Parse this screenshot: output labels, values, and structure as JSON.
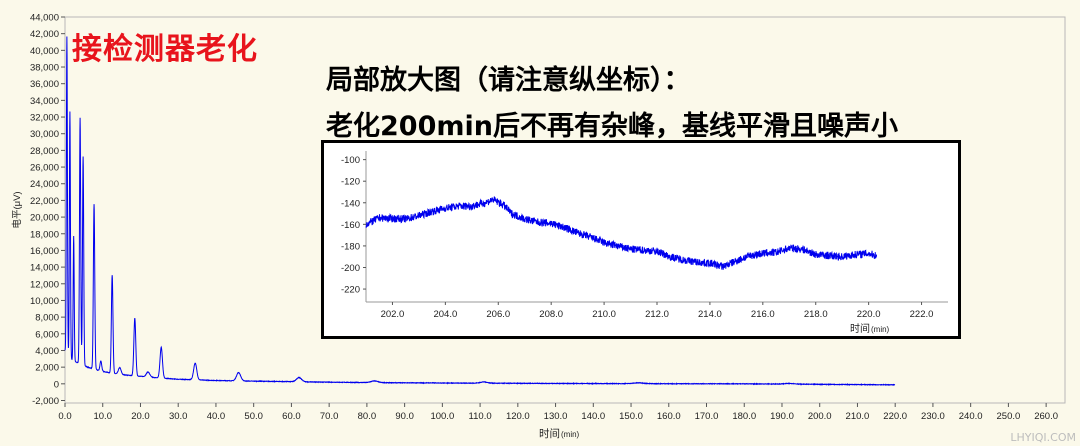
{
  "annotations": {
    "title_red": "接检测器老化",
    "note_line1": "局部放大图（请注意纵坐标）：",
    "note_line2": "老化200min后不再有杂峰，基线平滑且噪声小"
  },
  "watermark": "LHYIQI.COM",
  "colors": {
    "trace": "#0000ee",
    "title_red": "#e8141c",
    "axis": "#606060"
  },
  "chart_data": [
    {
      "type": "line",
      "name": "main-chromatogram",
      "xlabel": "时间",
      "xlabel_unit": "(min)",
      "ylabel": "电平(μV)",
      "xlim": [
        0,
        265
      ],
      "ylim": [
        -2300,
        44000
      ],
      "x_ticks": [
        0.0,
        10.0,
        20.0,
        30.0,
        40.0,
        50.0,
        60.0,
        70.0,
        80.0,
        90.0,
        100.0,
        110.0,
        120.0,
        130.0,
        140.0,
        150.0,
        160.0,
        170.0,
        180.0,
        190.0,
        200.0,
        210.0,
        220.0,
        230.0,
        240.0,
        250.0,
        260.0
      ],
      "x_tick_labels": [
        "0.0",
        "10.0",
        "20.0",
        "30.0",
        "40.0",
        "50.0",
        "60.0",
        "70.0",
        "80.0",
        "90.0",
        "100.0",
        "110.0",
        "120.0",
        "130.0",
        "140.0",
        "150.0",
        "160.0",
        "170.0",
        "180.0",
        "190.0",
        "200.0",
        "210.0",
        "220.0",
        "230.0",
        "240.0",
        "250.0",
        "260.0"
      ],
      "y_ticks": [
        -2000,
        0,
        2000,
        4000,
        6000,
        8000,
        10000,
        12000,
        14000,
        16000,
        18000,
        20000,
        22000,
        24000,
        26000,
        28000,
        30000,
        32000,
        34000,
        36000,
        38000,
        40000,
        42000,
        44000
      ],
      "y_tick_labels": [
        "-2,000",
        "0",
        "2,000",
        "4,000",
        "6,000",
        "8,000",
        "10,000",
        "12,000",
        "14,000",
        "16,000",
        "18,000",
        "20,000",
        "22,000",
        "24,000",
        "26,000",
        "28,000",
        "30,000",
        "32,000",
        "34,000",
        "36,000",
        "38,000",
        "40,000",
        "42,000",
        "44,000"
      ],
      "series": [
        {
          "name": "signal",
          "baseline": [
            [
              0,
              4000
            ],
            [
              1,
              3300
            ],
            [
              2,
              2800
            ],
            [
              4,
              2400
            ],
            [
              6,
              2000
            ],
            [
              9,
              1600
            ],
            [
              12,
              1300
            ],
            [
              15,
              1100
            ],
            [
              20,
              900
            ],
            [
              25,
              700
            ],
            [
              30,
              550
            ],
            [
              40,
              400
            ],
            [
              50,
              320
            ],
            [
              60,
              260
            ],
            [
              70,
              200
            ],
            [
              80,
              150
            ],
            [
              100,
              100
            ],
            [
              120,
              60
            ],
            [
              150,
              20
            ],
            [
              180,
              0
            ],
            [
              200,
              -60
            ],
            [
              220,
              -120
            ]
          ],
          "peaks": [
            {
              "rt": 0.5,
              "height": 38000,
              "width": 0.3
            },
            {
              "rt": 1.3,
              "height": 29500,
              "width": 0.3
            },
            {
              "rt": 2.3,
              "height": 15000,
              "width": 0.3
            },
            {
              "rt": 4.0,
              "height": 29500,
              "width": 0.35
            },
            {
              "rt": 4.8,
              "height": 25000,
              "width": 0.35
            },
            {
              "rt": 7.7,
              "height": 19800,
              "width": 0.4
            },
            {
              "rt": 9.5,
              "height": 1200,
              "width": 0.5
            },
            {
              "rt": 12.5,
              "height": 11800,
              "width": 0.45
            },
            {
              "rt": 14.5,
              "height": 800,
              "width": 0.8
            },
            {
              "rt": 18.5,
              "height": 6900,
              "width": 0.55
            },
            {
              "rt": 22.0,
              "height": 600,
              "width": 1.0
            },
            {
              "rt": 25.5,
              "height": 3700,
              "width": 0.7
            },
            {
              "rt": 34.5,
              "height": 2000,
              "width": 0.9
            },
            {
              "rt": 46.0,
              "height": 1000,
              "width": 1.2
            },
            {
              "rt": 62.0,
              "height": 500,
              "width": 1.5
            },
            {
              "rt": 82.0,
              "height": 200,
              "width": 2.0
            },
            {
              "rt": 111.0,
              "height": 150,
              "width": 2.0
            },
            {
              "rt": 152.0,
              "height": 100,
              "width": 3.0
            },
            {
              "rt": 192.0,
              "height": 80,
              "width": 3.0
            }
          ]
        }
      ]
    },
    {
      "type": "line",
      "name": "inset-zoom",
      "xlabel": "时间",
      "xlabel_unit": "(min)",
      "xlim": [
        201.0,
        223.0
      ],
      "ylim": [
        -232,
        -92
      ],
      "x_ticks": [
        202.0,
        204.0,
        206.0,
        208.0,
        210.0,
        212.0,
        214.0,
        216.0,
        218.0,
        220.0,
        222.0
      ],
      "x_tick_labels": [
        "202.0",
        "204.0",
        "206.0",
        "208.0",
        "210.0",
        "212.0",
        "214.0",
        "216.0",
        "218.0",
        "220.0",
        "222.0"
      ],
      "y_ticks": [
        -100,
        -120,
        -140,
        -160,
        -180,
        -200,
        -220
      ],
      "y_tick_labels": [
        "-100",
        "-120",
        "-140",
        "-160",
        "-180",
        "-200",
        "-220"
      ],
      "series": [
        {
          "name": "baseline-zoom",
          "points": [
            [
              201.0,
              -160
            ],
            [
              201.5,
              -154
            ],
            [
              202.5,
              -155
            ],
            [
              203.0,
              -152
            ],
            [
              203.5,
              -148
            ],
            [
              204.0,
              -145
            ],
            [
              204.5,
              -143
            ],
            [
              205.0,
              -143
            ],
            [
              205.5,
              -140
            ],
            [
              205.8,
              -137
            ],
            [
              206.2,
              -142
            ],
            [
              206.5,
              -150
            ],
            [
              207.0,
              -155
            ],
            [
              207.5,
              -158
            ],
            [
              208.0,
              -159
            ],
            [
              208.5,
              -163
            ],
            [
              209.0,
              -168
            ],
            [
              209.5,
              -172
            ],
            [
              210.0,
              -177
            ],
            [
              210.5,
              -180
            ],
            [
              211.0,
              -183
            ],
            [
              211.5,
              -184
            ],
            [
              212.0,
              -185
            ],
            [
              212.5,
              -190
            ],
            [
              213.0,
              -193
            ],
            [
              213.5,
              -195
            ],
            [
              214.0,
              -196
            ],
            [
              214.5,
              -199
            ],
            [
              215.0,
              -194
            ],
            [
              215.5,
              -189
            ],
            [
              216.0,
              -187
            ],
            [
              216.5,
              -186
            ],
            [
              217.0,
              -182
            ],
            [
              217.5,
              -183
            ],
            [
              218.0,
              -188
            ],
            [
              218.5,
              -189
            ],
            [
              219.0,
              -190
            ],
            [
              219.5,
              -188
            ],
            [
              220.0,
              -187
            ],
            [
              220.3,
              -189
            ]
          ],
          "noise_amplitude": 3.5
        }
      ]
    }
  ]
}
